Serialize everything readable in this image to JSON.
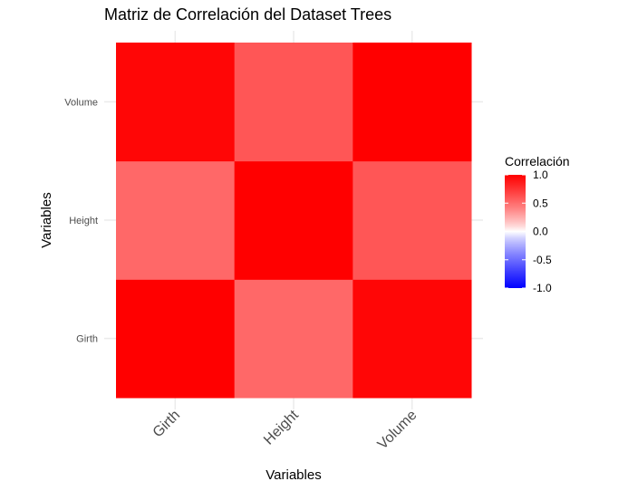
{
  "chart_data": {
    "type": "heatmap",
    "title": "Matriz de Correlación del Dataset Trees",
    "xlabel": "Variables",
    "ylabel": "Variables",
    "x_categories": [
      "Girth",
      "Height",
      "Volume"
    ],
    "y_categories": [
      "Girth",
      "Height",
      "Volume"
    ],
    "matrix": [
      [
        1.0,
        0.52,
        0.97
      ],
      [
        0.52,
        1.0,
        0.6
      ],
      [
        0.97,
        0.6,
        1.0
      ]
    ],
    "legend": {
      "title": "Correlación",
      "ticks": [
        1.0,
        0.5,
        0.0,
        -0.5,
        -1.0
      ],
      "tick_labels": [
        "1.0",
        "0.5",
        "0.0",
        "-0.5",
        "-1.0"
      ],
      "range": [
        -1,
        1
      ],
      "colors": {
        "low": "#0000ff",
        "mid": "#ffffff",
        "high": "#ff0000"
      },
      "placement": "right"
    }
  }
}
